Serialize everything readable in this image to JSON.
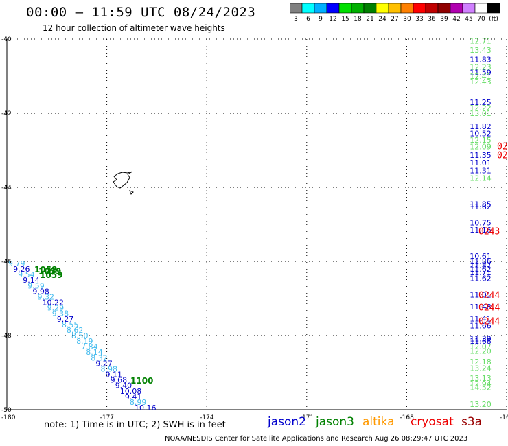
{
  "title": "00:00 — 11:59 UTC 08/24/2023",
  "subtitle": "12 hour collection of altimeter wave heights",
  "colorbar": {
    "swatches": [
      "#808080",
      "#00ffff",
      "#00b0ff",
      "#0000ff",
      "#00e000",
      "#00b000",
      "#008000",
      "#ffff00",
      "#ffc000",
      "#ff8000",
      "#ff0000",
      "#c00000",
      "#900000",
      "#b000b0",
      "#d080ff",
      "#ffffff",
      "#000000"
    ],
    "labels": [
      "3",
      "6",
      "9",
      "12",
      "15",
      "18",
      "21",
      "24",
      "27",
      "30",
      "33",
      "36",
      "39",
      "42",
      "45",
      "70",
      "(ft)"
    ]
  },
  "axes": {
    "lat_labels": [
      "-40",
      "-42",
      "-44",
      "-46",
      "-48",
      "-50"
    ],
    "lon_labels": [
      "-180",
      "-177",
      "-174",
      "-171",
      "-168",
      "-165"
    ]
  },
  "satellites": [
    {
      "name": "jason2",
      "color": "#0000cc"
    },
    {
      "name": "jason3",
      "color": "#008000"
    },
    {
      "name": "altika",
      "color": "#ff9900"
    },
    {
      "name": "cryosat",
      "color": "#ee0000"
    },
    {
      "name": "s3a",
      "color": "#990000"
    }
  ],
  "note": "note:  1) Time is in UTC;  2) SWH is in feet",
  "footer": "NOAA/NESDIS Center for Satellite Applications and Research    Aug 26 08:29:47 UTC 2023",
  "observations": {
    "right_column": [
      {
        "v": "12.71",
        "c": "#66dd66",
        "lat": -40.05
      },
      {
        "v": "13.43",
        "c": "#66dd66",
        "lat": -40.3
      },
      {
        "v": "11.83",
        "c": "#0000cc",
        "lat": -40.55
      },
      {
        "v": "12.23",
        "c": "#66dd66",
        "lat": -40.75
      },
      {
        "v": "11.59",
        "c": "#0000cc",
        "lat": -40.9
      },
      {
        "v": "12.41",
        "c": "#66dd66",
        "lat": -41.0
      },
      {
        "v": "12.43",
        "c": "#66dd66",
        "lat": -41.15
      },
      {
        "v": "11.25",
        "c": "#0000cc",
        "lat": -41.7
      },
      {
        "v": "12.22",
        "c": "#66dd66",
        "lat": -41.85
      },
      {
        "v": "13.01",
        "c": "#66dd66",
        "lat": -42.0
      },
      {
        "v": "11.82",
        "c": "#0000cc",
        "lat": -42.35
      },
      {
        "v": "10.52",
        "c": "#0000cc",
        "lat": -42.55
      },
      {
        "v": "12.15",
        "c": "#66dd66",
        "lat": -42.72
      },
      {
        "v": "12.09",
        "c": "#66dd66",
        "lat": -42.9
      },
      {
        "v": "11.35",
        "c": "#0000cc",
        "lat": -43.13
      },
      {
        "v": "11.01",
        "c": "#0000cc",
        "lat": -43.33
      },
      {
        "v": "11.31",
        "c": "#0000cc",
        "lat": -43.55
      },
      {
        "v": "12.14",
        "c": "#66dd66",
        "lat": -43.75
      },
      {
        "v": "11.85",
        "c": "#0000cc",
        "lat": -44.45
      },
      {
        "v": "11.62",
        "c": "#0000cc",
        "lat": -44.52
      },
      {
        "v": "10.75",
        "c": "#0000cc",
        "lat": -44.95
      },
      {
        "v": "11.16",
        "c": "#0000cc",
        "lat": -45.15
      },
      {
        "v": "10.61",
        "c": "#0000cc",
        "lat": -45.85
      },
      {
        "v": "11.86",
        "c": "#0000cc",
        "lat": -46.0
      },
      {
        "v": "11.87",
        "c": "#0000cc",
        "lat": -46.1
      },
      {
        "v": "11.62",
        "c": "#0000cc",
        "lat": -46.2
      },
      {
        "v": "11.71",
        "c": "#0000cc",
        "lat": -46.3
      },
      {
        "v": "11.62",
        "c": "#0000cc",
        "lat": -46.45
      },
      {
        "v": "11.01",
        "c": "#0000cc",
        "lat": -46.9
      },
      {
        "v": "11.48",
        "c": "#0000cc",
        "lat": -47.22
      },
      {
        "v": "11.41",
        "c": "#0000cc",
        "lat": -47.55
      },
      {
        "v": "11.66",
        "c": "#0000cc",
        "lat": -47.73
      },
      {
        "v": "11.39",
        "c": "#0000cc",
        "lat": -48.08
      },
      {
        "v": "11.68",
        "c": "#0000cc",
        "lat": -48.15
      },
      {
        "v": "12.07",
        "c": "#66dd66",
        "lat": -48.3
      },
      {
        "v": "12.20",
        "c": "#66dd66",
        "lat": -48.42
      },
      {
        "v": "12.18",
        "c": "#66dd66",
        "lat": -48.7
      },
      {
        "v": "13.24",
        "c": "#66dd66",
        "lat": -48.88
      },
      {
        "v": "13.13",
        "c": "#66dd66",
        "lat": -49.15
      },
      {
        "v": "12.94",
        "c": "#66dd66",
        "lat": -49.3
      },
      {
        "v": "14.52",
        "c": "#66dd66",
        "lat": -49.4
      },
      {
        "v": "13.20",
        "c": "#66dd66",
        "lat": -49.85
      }
    ],
    "cryosat_times": [
      {
        "v": "02",
        "lat": -42.88
      },
      {
        "v": "02",
        "lat": -43.12
      },
      {
        "v": "0243",
        "lat": -45.18
      },
      {
        "v": "0244",
        "lat": -46.9
      },
      {
        "v": "0244",
        "lat": -47.23
      },
      {
        "v": "0244",
        "lat": -47.6
      }
    ],
    "jason3_times": [
      {
        "v": "1058",
        "lat": -46.2
      },
      {
        "v": "1059",
        "lat": -46.25
      },
      {
        "v": "1059",
        "lat": -46.35
      },
      {
        "v": "1100",
        "lat": -49.2
      }
    ],
    "left_track": [
      {
        "v": "9.79",
        "c": "#44bbee"
      },
      {
        "v": "9.26",
        "c": "#0000cc"
      },
      {
        "v": "9.54",
        "c": "#44bbee"
      },
      {
        "v": "9.14",
        "c": "#0000cc"
      },
      {
        "v": "9.59",
        "c": "#44bbee"
      },
      {
        "v": "9.98",
        "c": "#0000cc"
      },
      {
        "v": "9.32",
        "c": "#44bbee"
      },
      {
        "v": "10.22",
        "c": "#0000cc"
      },
      {
        "v": "9.29",
        "c": "#44bbee"
      },
      {
        "v": "9.38",
        "c": "#44bbee"
      },
      {
        "v": "9.27",
        "c": "#0000cc"
      },
      {
        "v": "8.55",
        "c": "#44bbee"
      },
      {
        "v": "8.62",
        "c": "#44bbee"
      },
      {
        "v": "8.50",
        "c": "#44bbee"
      },
      {
        "v": "8.19",
        "c": "#44bbee"
      },
      {
        "v": "7.84",
        "c": "#44bbee"
      },
      {
        "v": "8.14",
        "c": "#44bbee"
      },
      {
        "v": "8.32",
        "c": "#44bbee"
      },
      {
        "v": "9.27",
        "c": "#0000cc"
      },
      {
        "v": "8.98",
        "c": "#44bbee"
      },
      {
        "v": "9.11",
        "c": "#0000cc"
      },
      {
        "v": "9.68",
        "c": "#0000cc"
      },
      {
        "v": "9.40",
        "c": "#0000cc"
      },
      {
        "v": "10.08",
        "c": "#0000cc"
      },
      {
        "v": "9.41",
        "c": "#0000cc"
      },
      {
        "v": "8.99",
        "c": "#44bbee"
      },
      {
        "v": "10.16",
        "c": "#0000cc"
      }
    ]
  }
}
